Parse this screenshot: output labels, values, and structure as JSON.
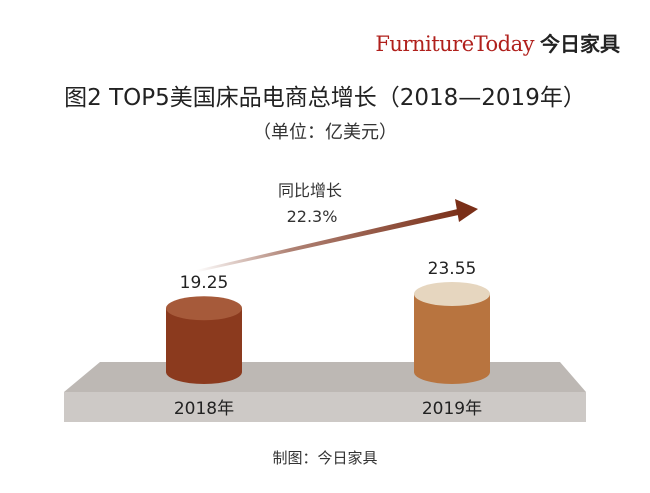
{
  "brand": {
    "logo_text": "FurnitureToday",
    "name_cn": "今日家具"
  },
  "chart_data": {
    "type": "bar",
    "title": "图2  TOP5美国床品电商总增长（2018—2019年）",
    "subtitle": "（单位：亿美元）",
    "categories": [
      "2018年",
      "2019年"
    ],
    "values": [
      19.25,
      23.55
    ],
    "value_labels": [
      "19.25",
      "23.55"
    ],
    "growth_label": "同比增长",
    "growth_value": "22.3%",
    "ylim": [
      0,
      23.55
    ],
    "colors": {
      "bar_2018": "#8b3a1e",
      "bar_2019": "#b8743f",
      "top_2018": "#a65a3a",
      "top_2019": "#e6d6bf",
      "platform": "#cdc9c6",
      "arrow": "#7a2f18"
    }
  },
  "footer": {
    "credit": "制图：今日家具"
  }
}
